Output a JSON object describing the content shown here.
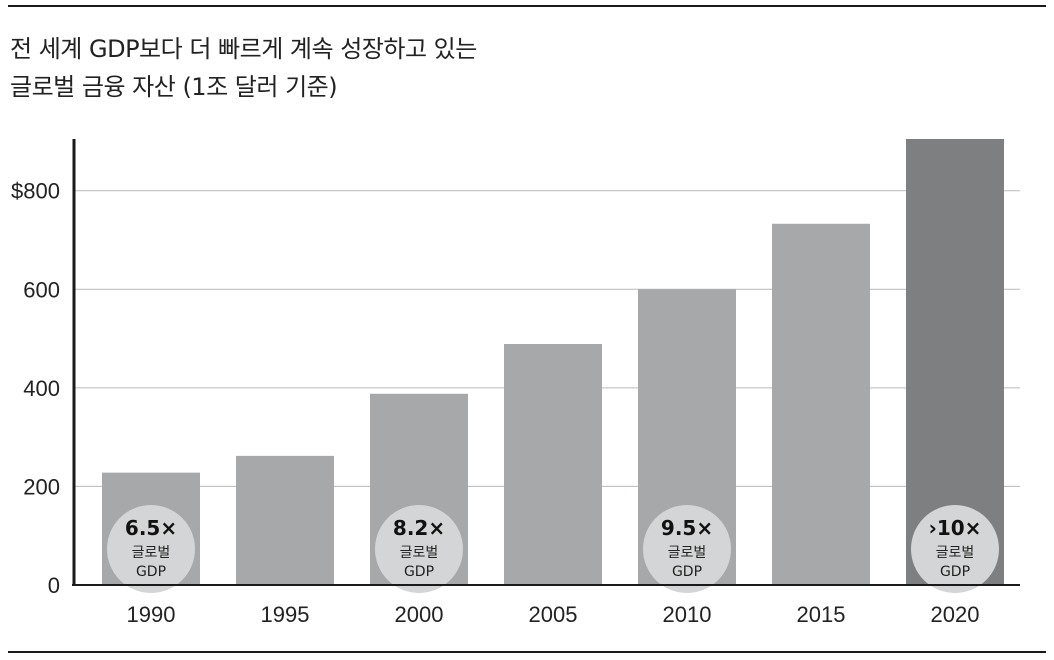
{
  "chart_data": {
    "type": "bar",
    "title_line1": "전 세계 GDP보다 더 빠르게 계속 성장하고 있는",
    "title_line2": "글로벌 금융 자산 (1조 달러 기준)",
    "categories": [
      "1990",
      "1995",
      "2000",
      "2005",
      "2010",
      "2015",
      "2020"
    ],
    "values": [
      228,
      262,
      388,
      489,
      600,
      733,
      905
    ],
    "ylim": [
      0,
      905
    ],
    "yticks": [
      {
        "value": 0,
        "label": "0"
      },
      {
        "value": 200,
        "label": "200"
      },
      {
        "value": 400,
        "label": "400"
      },
      {
        "value": 600,
        "label": "600"
      },
      {
        "value": 800,
        "label": "$800"
      }
    ],
    "grid": true,
    "bar_color": "#a7a8aa",
    "highlight_color": "#7e7f81",
    "highlight_category": "2020",
    "annotations": [
      {
        "category": "1990",
        "value": "6.5×",
        "sub1": "글로벌",
        "sub2": "GDP"
      },
      {
        "category": "2000",
        "value": "8.2×",
        "sub1": "글로벌",
        "sub2": "GDP"
      },
      {
        "category": "2010",
        "value": "9.5×",
        "sub1": "글로벌",
        "sub2": "GDP"
      },
      {
        "category": "2020",
        "value": "›10×",
        "sub1": "글로벌",
        "sub2": "GDP"
      }
    ],
    "badge_color": "#d4d5d6"
  }
}
